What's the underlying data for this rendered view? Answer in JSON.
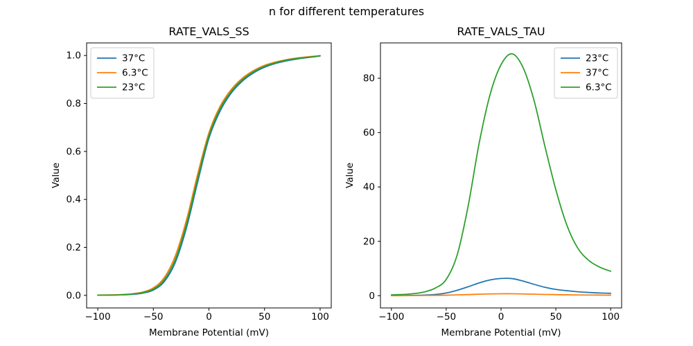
{
  "figure": {
    "suptitle": "n for different temperatures",
    "background": "#ffffff",
    "text_color": "#000000"
  },
  "palette": {
    "blue": "#1f77b4",
    "orange": "#ff7f0e",
    "green": "#2ca02c"
  },
  "chart_data": [
    {
      "type": "line",
      "title": "RATE_VALS_SS",
      "xlabel": "Membrane Potential (mV)",
      "ylabel": "Value",
      "xlim": [
        -110,
        110
      ],
      "ylim": [
        -0.0525,
        1.0525
      ],
      "xticks": [
        -100,
        -50,
        0,
        50,
        100
      ],
      "xtick_labels": [
        "−100",
        "−50",
        "0",
        "50",
        "100"
      ],
      "yticks": [
        0.0,
        0.2,
        0.4,
        0.6,
        0.8,
        1.0
      ],
      "ytick_labels": [
        "0.0",
        "0.2",
        "0.4",
        "0.6",
        "0.8",
        "1.0"
      ],
      "grid": false,
      "legend_position": "upper-left",
      "x": [
        -100,
        -90,
        -80,
        -70,
        -60,
        -50,
        -40,
        -30,
        -20,
        -10,
        0,
        10,
        20,
        30,
        40,
        50,
        60,
        70,
        80,
        90,
        100
      ],
      "series": [
        {
          "name": "37°C",
          "color": "#1f77b4",
          "values": [
            0.001,
            0.001,
            0.002,
            0.004,
            0.009,
            0.022,
            0.058,
            0.14,
            0.285,
            0.475,
            0.655,
            0.768,
            0.843,
            0.893,
            0.927,
            0.951,
            0.967,
            0.978,
            0.986,
            0.992,
            0.998
          ]
        },
        {
          "name": "6.3°C",
          "color": "#ff7f0e",
          "values": [
            0.001,
            0.002,
            0.003,
            0.006,
            0.013,
            0.031,
            0.075,
            0.168,
            0.318,
            0.508,
            0.678,
            0.788,
            0.858,
            0.905,
            0.937,
            0.959,
            0.973,
            0.983,
            0.99,
            0.995,
            0.999
          ]
        },
        {
          "name": "23°C",
          "color": "#2ca02c",
          "values": [
            0.001,
            0.001,
            0.002,
            0.005,
            0.011,
            0.026,
            0.066,
            0.153,
            0.3,
            0.49,
            0.666,
            0.778,
            0.85,
            0.899,
            0.932,
            0.955,
            0.97,
            0.981,
            0.988,
            0.993,
            0.999
          ]
        }
      ]
    },
    {
      "type": "line",
      "title": "RATE_VALS_TAU",
      "xlabel": "Membrane Potential (mV)",
      "ylabel": "Value",
      "xlim": [
        -110,
        110
      ],
      "ylim": [
        -4.5,
        93
      ],
      "xticks": [
        -100,
        -50,
        0,
        50,
        100
      ],
      "xtick_labels": [
        "−100",
        "−50",
        "0",
        "50",
        "100"
      ],
      "yticks": [
        0,
        20,
        40,
        60,
        80
      ],
      "ytick_labels": [
        "0",
        "20",
        "40",
        "60",
        "80"
      ],
      "grid": false,
      "legend_position": "upper-right",
      "x": [
        -100,
        -90,
        -80,
        -70,
        -60,
        -50,
        -40,
        -30,
        -20,
        -10,
        0,
        10,
        20,
        30,
        40,
        50,
        60,
        70,
        80,
        90,
        100
      ],
      "series": [
        {
          "name": "23°C",
          "color": "#1f77b4",
          "values": [
            0.05,
            0.08,
            0.13,
            0.22,
            0.45,
            1.0,
            2.0,
            3.3,
            4.7,
            5.8,
            6.35,
            6.3,
            5.4,
            4.2,
            3.1,
            2.3,
            1.85,
            1.45,
            1.2,
            1.0,
            0.9
          ]
        },
        {
          "name": "37°C",
          "color": "#ff7f0e",
          "values": [
            0.02,
            0.03,
            0.05,
            0.08,
            0.13,
            0.2,
            0.3,
            0.42,
            0.55,
            0.65,
            0.72,
            0.72,
            0.65,
            0.55,
            0.46,
            0.38,
            0.32,
            0.28,
            0.25,
            0.22,
            0.2
          ]
        },
        {
          "name": "6.3°C",
          "color": "#2ca02c",
          "values": [
            0.3,
            0.45,
            0.75,
            1.4,
            2.8,
            6.0,
            15,
            33,
            56,
            74,
            85,
            89,
            84,
            72,
            55,
            39,
            26,
            17.5,
            13,
            10.5,
            9
          ]
        }
      ]
    }
  ]
}
